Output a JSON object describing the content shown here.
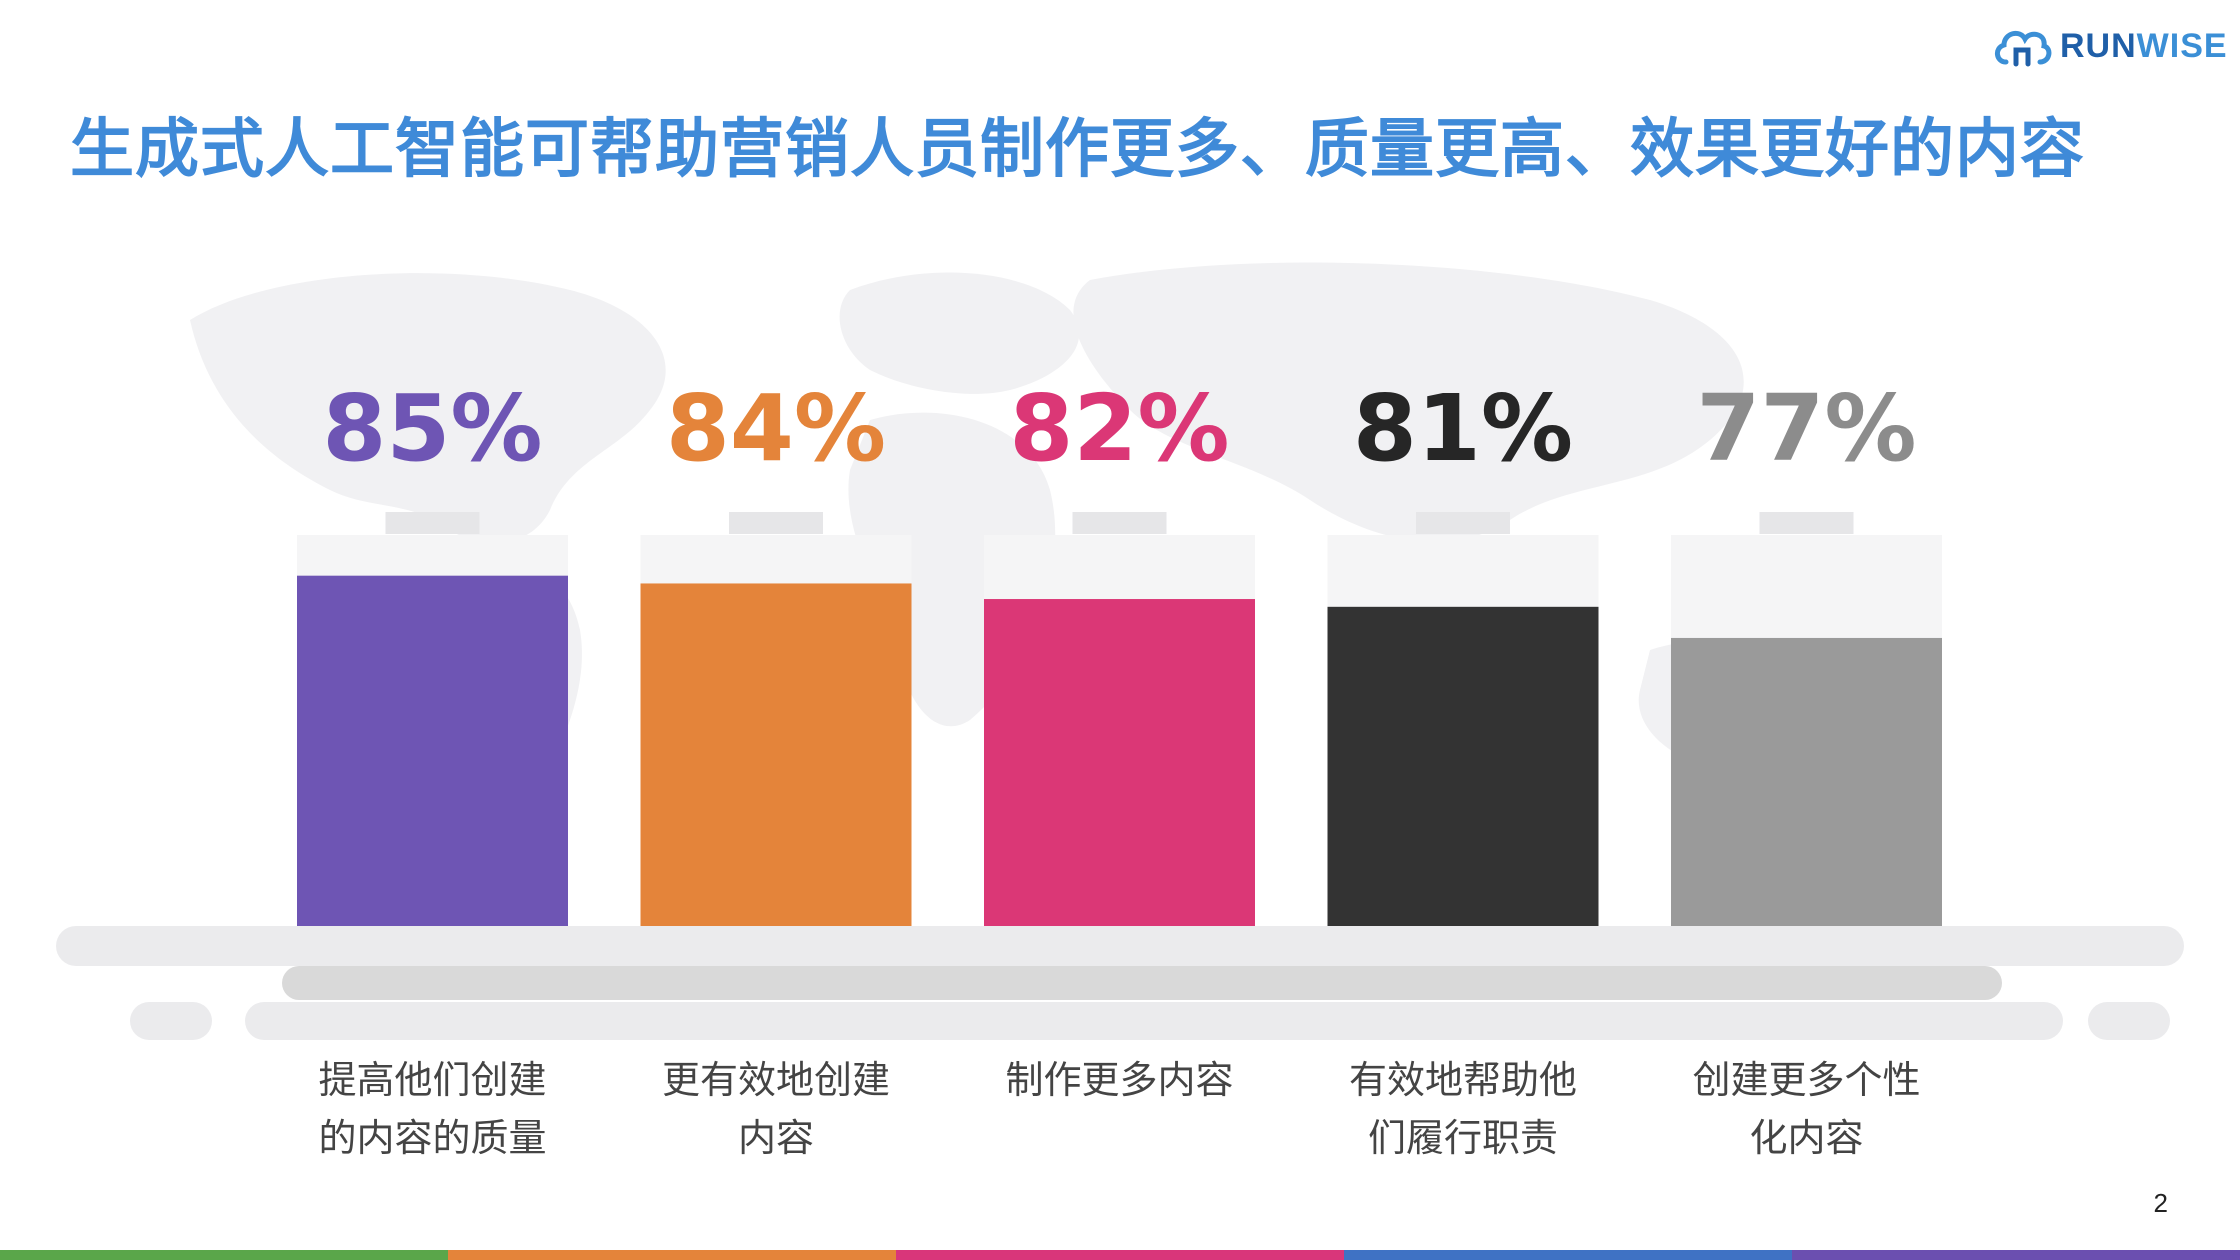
{
  "logo": {
    "text_run": "RUN",
    "text_wise": "WISE"
  },
  "title": "生成式人工智能可帮助营销人员制作更多、质量更高、效果更好的内容",
  "page_number": "2",
  "colors": {
    "title": "#3f8ad8",
    "stripe": [
      "#5aa64a",
      "#e4843a",
      "#d9367a",
      "#3f72c4",
      "#6b4fb0"
    ]
  },
  "chart_data": {
    "type": "bar",
    "categories": [
      "提高他们创建的内容的质量",
      "更有效地创建内容",
      "制作更多内容",
      "有效地帮助他们履行职责",
      "创建更多个性化内容"
    ],
    "category_lines": [
      [
        "提高他们创建",
        "的内容的质量"
      ],
      [
        "更有效地创建",
        "内容"
      ],
      [
        "制作更多内容"
      ],
      [
        "有效地帮助他",
        "们履行职责"
      ],
      [
        "创建更多个性",
        "化内容"
      ]
    ],
    "values": [
      85,
      84,
      82,
      81,
      77
    ],
    "value_labels": [
      "85%",
      "84%",
      "82%",
      "81%",
      "77%"
    ],
    "bar_colors": [
      "#6e55b4",
      "#e4843a",
      "#db3776",
      "#333333",
      "#9a9a9a"
    ],
    "label_colors": [
      "#6e55b4",
      "#e4843a",
      "#db3776",
      "#262626",
      "#8c8c8c"
    ],
    "unit": "%",
    "grid": false,
    "legend": "none"
  }
}
